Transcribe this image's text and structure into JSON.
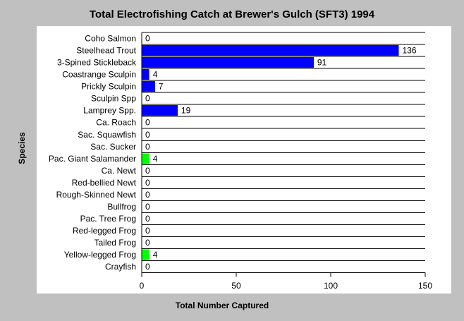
{
  "chart_data": {
    "type": "bar",
    "orientation": "horizontal",
    "title": "Total Electrofishing Catch at Brewer's Gulch (SFT3) 1994",
    "xlabel": "Total Number Captured",
    "ylabel": "Species",
    "xlim": [
      0,
      150
    ],
    "xticks": [
      0,
      50,
      100,
      150
    ],
    "grid": "horizontal",
    "categories": [
      "Coho Salmon",
      "Steelhead Trout",
      "3-Spined Stickleback",
      "Coastrange Sculpin",
      "Prickly Sculpin",
      "Sculpin Spp",
      "Lamprey Spp.",
      "Ca. Roach",
      "Sac. Squawfish",
      "Sac. Sucker",
      "Pac. Giant Salamander",
      "Ca. Newt",
      "Red-bellied Newt",
      "Rough-Skinned Newt",
      "Bullfrog",
      "Pac. Tree Frog",
      "Red-legged Frog",
      "Tailed Frog",
      "Yellow-legged Frog",
      "Crayfish"
    ],
    "values": [
      0,
      136,
      91,
      4,
      7,
      0,
      19,
      0,
      0,
      0,
      4,
      0,
      0,
      0,
      0,
      0,
      0,
      0,
      4,
      0
    ],
    "bar_colors": [
      "#0000ff",
      "#0000ff",
      "#0000ff",
      "#0000ff",
      "#0000ff",
      "#0000ff",
      "#0000ff",
      "#0000ff",
      "#0000ff",
      "#0000ff",
      "#00ff00",
      "#00ff00",
      "#00ff00",
      "#00ff00",
      "#00ff00",
      "#00ff00",
      "#00ff00",
      "#00ff00",
      "#00ff00",
      "#0000ff"
    ]
  }
}
